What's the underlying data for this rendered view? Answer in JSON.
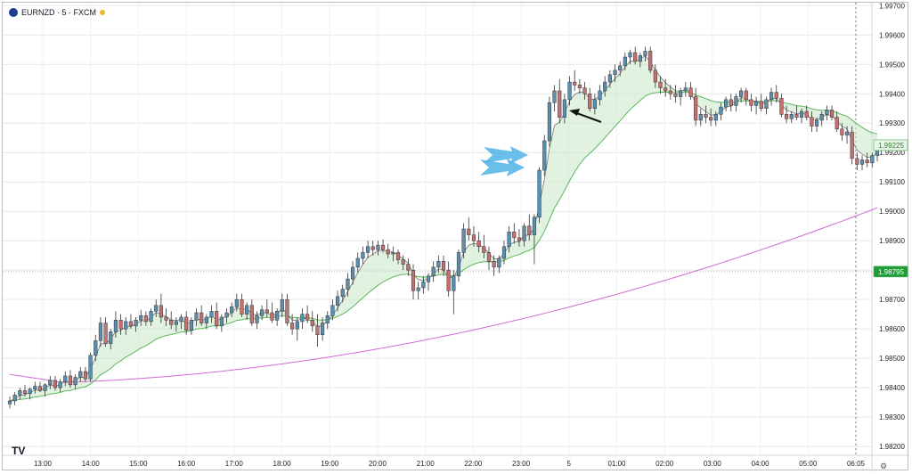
{
  "legend": {
    "symbol": "EURNZD · 5 · FXCM",
    "logo_icon": "fxcm-logo-icon",
    "market_icon": "market-status-dot-icon"
  },
  "brand": {
    "label": "TV",
    "icon": "tradingview-logo-icon"
  },
  "settings_icon": "gear-icon",
  "price_badges": [
    {
      "value": "1.99225",
      "color": "#4caf50",
      "bg": "#e8f5e9"
    },
    {
      "value": "1.98795",
      "color": "#ffffff",
      "bg": "#1f9d3a"
    }
  ],
  "chart_data": {
    "type": "candlestick",
    "title": "",
    "xlabel": "",
    "ylabel": "",
    "x_ticks": [
      "13:00",
      "14:00",
      "15:00",
      "16:00",
      "17:00",
      "18:00",
      "19:00",
      "20:00",
      "21:00",
      "22:00",
      "23:00",
      "5",
      "01:00",
      "02:00",
      "03:00",
      "04:00",
      "05:00",
      "06:05"
    ],
    "y_ticks": [
      "1.98200",
      "1.98300",
      "1.98400",
      "1.98500",
      "1.98600",
      "1.98700",
      "1.98800",
      "1.98900",
      "1.99000",
      "1.99100",
      "1.99200",
      "1.99300",
      "1.99400",
      "1.99500",
      "1.99600",
      "1.99700"
    ],
    "ylim": [
      1.9817,
      1.9971
    ],
    "grid": true,
    "colors": {
      "up": "#5b8fb0",
      "down": "#c4716f",
      "fast_ma": "#777777",
      "slow_ma": "#5cb85c",
      "long_ma": "#d46bd4",
      "band_fill": "#c8e8c8",
      "arrow_blue": "#4fb3e6",
      "arrow_black": "#111111"
    },
    "series": [
      {
        "name": "",
        "type": "line",
        "key": "long_ma"
      },
      {
        "name": "",
        "type": "line",
        "key": "slow_ma"
      },
      {
        "name": "",
        "type": "line",
        "key": "fast_ma"
      }
    ],
    "candles": [
      [
        1.98345,
        1.9837,
        1.9833,
        1.98355
      ],
      [
        1.98355,
        1.98385,
        1.9834,
        1.98375
      ],
      [
        1.98375,
        1.984,
        1.9836,
        1.9839
      ],
      [
        1.9839,
        1.9841,
        1.9837,
        1.9838
      ],
      [
        1.9838,
        1.984,
        1.9836,
        1.98395
      ],
      [
        1.98395,
        1.9842,
        1.9838,
        1.98405
      ],
      [
        1.98405,
        1.9842,
        1.98385,
        1.9839
      ],
      [
        1.9839,
        1.98415,
        1.9837,
        1.9841
      ],
      [
        1.9841,
        1.9844,
        1.98395,
        1.98425
      ],
      [
        1.98425,
        1.9844,
        1.9839,
        1.984
      ],
      [
        1.984,
        1.9843,
        1.98385,
        1.9842
      ],
      [
        1.9842,
        1.98455,
        1.98405,
        1.9844
      ],
      [
        1.9844,
        1.9846,
        1.984,
        1.9841
      ],
      [
        1.9841,
        1.98445,
        1.98395,
        1.98435
      ],
      [
        1.98435,
        1.9847,
        1.9842,
        1.98455
      ],
      [
        1.98455,
        1.9847,
        1.9842,
        1.9843
      ],
      [
        1.9843,
        1.9852,
        1.9842,
        1.9851
      ],
      [
        1.9851,
        1.9858,
        1.9849,
        1.9856
      ],
      [
        1.9856,
        1.9864,
        1.9854,
        1.9862
      ],
      [
        1.9862,
        1.9864,
        1.9854,
        1.9855
      ],
      [
        1.9855,
        1.986,
        1.9853,
        1.9859
      ],
      [
        1.9859,
        1.9866,
        1.9857,
        1.9863
      ],
      [
        1.9863,
        1.9865,
        1.9858,
        1.986
      ],
      [
        1.986,
        1.9864,
        1.9858,
        1.98625
      ],
      [
        1.98625,
        1.9865,
        1.986,
        1.9861
      ],
      [
        1.9861,
        1.9864,
        1.9859,
        1.9863
      ],
      [
        1.9863,
        1.98665,
        1.9861,
        1.98645
      ],
      [
        1.98645,
        1.9866,
        1.9861,
        1.98625
      ],
      [
        1.98625,
        1.9867,
        1.9861,
        1.9866
      ],
      [
        1.9866,
        1.987,
        1.9864,
        1.9868
      ],
      [
        1.9868,
        1.9872,
        1.9862,
        1.9864
      ],
      [
        1.9864,
        1.9867,
        1.9861,
        1.9863
      ],
      [
        1.9863,
        1.9866,
        1.986,
        1.98615
      ],
      [
        1.98615,
        1.9864,
        1.9859,
        1.98625
      ],
      [
        1.98625,
        1.9865,
        1.986,
        1.9864
      ],
      [
        1.9864,
        1.9866,
        1.9858,
        1.98595
      ],
      [
        1.98595,
        1.9864,
        1.9858,
        1.9863
      ],
      [
        1.9863,
        1.9867,
        1.9861,
        1.98655
      ],
      [
        1.98655,
        1.9868,
        1.9861,
        1.9862
      ],
      [
        1.9862,
        1.9865,
        1.986,
        1.9864
      ],
      [
        1.9864,
        1.9868,
        1.9862,
        1.9866
      ],
      [
        1.9866,
        1.9869,
        1.986,
        1.9861
      ],
      [
        1.9861,
        1.9865,
        1.9859,
        1.9864
      ],
      [
        1.9864,
        1.9867,
        1.9862,
        1.98655
      ],
      [
        1.98655,
        1.9869,
        1.9864,
        1.98675
      ],
      [
        1.98675,
        1.9872,
        1.9866,
        1.987
      ],
      [
        1.987,
        1.9872,
        1.9864,
        1.9865
      ],
      [
        1.9865,
        1.9869,
        1.9863,
        1.9868
      ],
      [
        1.9868,
        1.987,
        1.9861,
        1.9862
      ],
      [
        1.9862,
        1.9866,
        1.986,
        1.98645
      ],
      [
        1.98645,
        1.9868,
        1.9863,
        1.98665
      ],
      [
        1.98665,
        1.987,
        1.9864,
        1.98655
      ],
      [
        1.98655,
        1.9869,
        1.9862,
        1.9863
      ],
      [
        1.9863,
        1.9867,
        1.9861,
        1.9866
      ],
      [
        1.9866,
        1.9872,
        1.9864,
        1.987
      ],
      [
        1.987,
        1.9872,
        1.9861,
        1.9862
      ],
      [
        1.9862,
        1.9865,
        1.9858,
        1.986
      ],
      [
        1.986,
        1.9864,
        1.9856,
        1.98625
      ],
      [
        1.98625,
        1.9867,
        1.986,
        1.9865
      ],
      [
        1.9865,
        1.9868,
        1.9862,
        1.9863
      ],
      [
        1.9863,
        1.9866,
        1.9859,
        1.9861
      ],
      [
        1.9861,
        1.9865,
        1.9854,
        1.9858
      ],
      [
        1.9858,
        1.9864,
        1.9856,
        1.9862
      ],
      [
        1.9862,
        1.9866,
        1.986,
        1.98645
      ],
      [
        1.98645,
        1.987,
        1.9863,
        1.9868
      ],
      [
        1.9868,
        1.9873,
        1.9866,
        1.9871
      ],
      [
        1.9871,
        1.9875,
        1.9869,
        1.98735
      ],
      [
        1.98735,
        1.9879,
        1.9871,
        1.9877
      ],
      [
        1.9877,
        1.9883,
        1.9875,
        1.9881
      ],
      [
        1.9881,
        1.9886,
        1.9879,
        1.9884
      ],
      [
        1.9884,
        1.9888,
        1.9882,
        1.9886
      ],
      [
        1.9886,
        1.989,
        1.9884,
        1.9888
      ],
      [
        1.9888,
        1.989,
        1.9885,
        1.9887
      ],
      [
        1.9887,
        1.989,
        1.9885,
        1.98885
      ],
      [
        1.98885,
        1.98905,
        1.9886,
        1.9887
      ],
      [
        1.9887,
        1.9889,
        1.9884,
        1.98855
      ],
      [
        1.98855,
        1.9888,
        1.9883,
        1.9886
      ],
      [
        1.9886,
        1.9887,
        1.9882,
        1.98835
      ],
      [
        1.98835,
        1.9885,
        1.988,
        1.9882
      ],
      [
        1.9882,
        1.9884,
        1.9878,
        1.988
      ],
      [
        1.988,
        1.9882,
        1.987,
        1.9873
      ],
      [
        1.9873,
        1.9876,
        1.987,
        1.9874
      ],
      [
        1.9874,
        1.9878,
        1.9872,
        1.9876
      ],
      [
        1.9876,
        1.9879,
        1.9873,
        1.9878
      ],
      [
        1.9878,
        1.9883,
        1.9876,
        1.9881
      ],
      [
        1.9881,
        1.9885,
        1.9879,
        1.9883
      ],
      [
        1.9883,
        1.9885,
        1.9878,
        1.988
      ],
      [
        1.988,
        1.9883,
        1.9871,
        1.9873
      ],
      [
        1.9873,
        1.988,
        1.9865,
        1.9878
      ],
      [
        1.9878,
        1.9887,
        1.9876,
        1.9886
      ],
      [
        1.9886,
        1.9896,
        1.9884,
        1.9894
      ],
      [
        1.9894,
        1.9898,
        1.989,
        1.9892
      ],
      [
        1.9892,
        1.9895,
        1.9888,
        1.989
      ],
      [
        1.989,
        1.9893,
        1.9886,
        1.9888
      ],
      [
        1.9888,
        1.9892,
        1.9884,
        1.9886
      ],
      [
        1.9886,
        1.9888,
        1.988,
        1.9883
      ],
      [
        1.9883,
        1.9885,
        1.9878,
        1.9881
      ],
      [
        1.9881,
        1.9885,
        1.9879,
        1.9884
      ],
      [
        1.9884,
        1.989,
        1.9882,
        1.9888
      ],
      [
        1.9888,
        1.9895,
        1.9886,
        1.9893
      ],
      [
        1.9893,
        1.9896,
        1.9889,
        1.9891
      ],
      [
        1.9891,
        1.9894,
        1.9888,
        1.989
      ],
      [
        1.989,
        1.9896,
        1.9888,
        1.9895
      ],
      [
        1.9895,
        1.9899,
        1.989,
        1.9892
      ],
      [
        1.9892,
        1.9899,
        1.9882,
        1.9898
      ],
      [
        1.9898,
        1.9915,
        1.9896,
        1.9914
      ],
      [
        1.9914,
        1.9926,
        1.9912,
        1.9924
      ],
      [
        1.9924,
        1.9939,
        1.9922,
        1.9937
      ],
      [
        1.9937,
        1.9943,
        1.9934,
        1.9941
      ],
      [
        1.9941,
        1.9945,
        1.993,
        1.9932
      ],
      [
        1.9932,
        1.994,
        1.993,
        1.9938
      ],
      [
        1.9938,
        1.9946,
        1.9936,
        1.9944
      ],
      [
        1.9944,
        1.9948,
        1.9941,
        1.9943
      ],
      [
        1.9943,
        1.9945,
        1.994,
        1.9942
      ],
      [
        1.9942,
        1.9944,
        1.9938,
        1.994
      ],
      [
        1.994,
        1.9942,
        1.9934,
        1.9935
      ],
      [
        1.9935,
        1.994,
        1.9933,
        1.9938
      ],
      [
        1.9938,
        1.9943,
        1.9936,
        1.9941
      ],
      [
        1.9941,
        1.9946,
        1.9939,
        1.9944
      ],
      [
        1.9944,
        1.9948,
        1.9942,
        1.99465
      ],
      [
        1.99465,
        1.995,
        1.9944,
        1.9948
      ],
      [
        1.9948,
        1.9951,
        1.9946,
        1.99495
      ],
      [
        1.99495,
        1.9954,
        1.9948,
        1.99525
      ],
      [
        1.99525,
        1.9955,
        1.995,
        1.9954
      ],
      [
        1.9954,
        1.9956,
        1.995,
        1.9951
      ],
      [
        1.9951,
        1.9954,
        1.9949,
        1.9953
      ],
      [
        1.9953,
        1.9956,
        1.9951,
        1.99545
      ],
      [
        1.99545,
        1.9956,
        1.9947,
        1.9948
      ],
      [
        1.9948,
        1.995,
        1.9942,
        1.9944
      ],
      [
        1.9944,
        1.9946,
        1.994,
        1.9942
      ],
      [
        1.9942,
        1.9945,
        1.9939,
        1.9941
      ],
      [
        1.9941,
        1.9943,
        1.9938,
        1.994
      ],
      [
        1.994,
        1.9943,
        1.9937,
        1.9939
      ],
      [
        1.9939,
        1.9942,
        1.9936,
        1.9941
      ],
      [
        1.9941,
        1.9944,
        1.9939,
        1.9942
      ],
      [
        1.9942,
        1.9944,
        1.9938,
        1.9939
      ],
      [
        1.9939,
        1.9942,
        1.9929,
        1.9931
      ],
      [
        1.9931,
        1.9935,
        1.9929,
        1.9933
      ],
      [
        1.9933,
        1.9936,
        1.993,
        1.9932
      ],
      [
        1.9932,
        1.9935,
        1.9929,
        1.9931
      ],
      [
        1.9931,
        1.9934,
        1.9929,
        1.9933
      ],
      [
        1.9933,
        1.9937,
        1.9931,
        1.99355
      ],
      [
        1.99355,
        1.9939,
        1.9934,
        1.9938
      ],
      [
        1.9938,
        1.994,
        1.9934,
        1.9936
      ],
      [
        1.9936,
        1.994,
        1.9934,
        1.9939
      ],
      [
        1.9939,
        1.9942,
        1.9937,
        1.9941
      ],
      [
        1.9941,
        1.9942,
        1.9936,
        1.9938
      ],
      [
        1.9938,
        1.994,
        1.9934,
        1.9936
      ],
      [
        1.9936,
        1.9939,
        1.9933,
        1.99375
      ],
      [
        1.99375,
        1.994,
        1.9934,
        1.9935
      ],
      [
        1.9935,
        1.9939,
        1.9933,
        1.9938
      ],
      [
        1.9938,
        1.9942,
        1.9936,
        1.99405
      ],
      [
        1.99405,
        1.9943,
        1.9937,
        1.99385
      ],
      [
        1.99385,
        1.994,
        1.9932,
        1.9933
      ],
      [
        1.9933,
        1.9936,
        1.993,
        1.99315
      ],
      [
        1.99315,
        1.9934,
        1.993,
        1.9933
      ],
      [
        1.9933,
        1.9936,
        1.9931,
        1.9932
      ],
      [
        1.9932,
        1.9935,
        1.993,
        1.9934
      ],
      [
        1.9934,
        1.9936,
        1.9931,
        1.9932
      ],
      [
        1.9932,
        1.9934,
        1.9927,
        1.9929
      ],
      [
        1.9929,
        1.9932,
        1.9927,
        1.9931
      ],
      [
        1.9931,
        1.9934,
        1.9929,
        1.9933
      ],
      [
        1.9933,
        1.9936,
        1.9931,
        1.99345
      ],
      [
        1.99345,
        1.9936,
        1.9931,
        1.9932
      ],
      [
        1.9932,
        1.9934,
        1.9927,
        1.9928
      ],
      [
        1.9928,
        1.993,
        1.9924,
        1.9926
      ],
      [
        1.9926,
        1.9929,
        1.9923,
        1.9927
      ],
      [
        1.9927,
        1.9929,
        1.9916,
        1.9918
      ],
      [
        1.9918,
        1.992,
        1.9914,
        1.9916
      ],
      [
        1.9916,
        1.9919,
        1.9914,
        1.99175
      ],
      [
        1.99175,
        1.992,
        1.9915,
        1.99165
      ],
      [
        1.99165,
        1.992,
        1.9915,
        1.9919
      ],
      [
        1.9919,
        1.9923,
        1.9917,
        1.99225
      ]
    ]
  }
}
